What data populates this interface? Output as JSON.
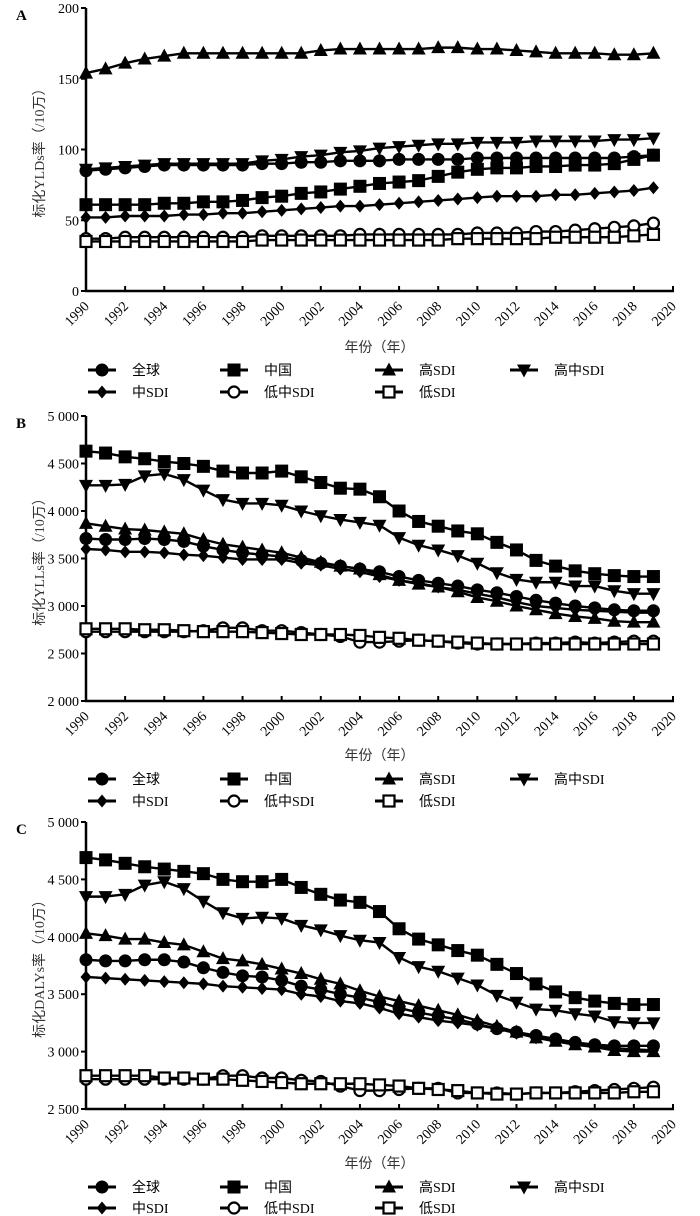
{
  "chart_data": [
    {
      "type": "line",
      "panel_label": "A",
      "title": "",
      "xlabel": "年份（年）",
      "ylabel": "标化YLDs率（/10万）",
      "xlim": [
        1990,
        2020
      ],
      "ylim": [
        0,
        200
      ],
      "x_ticks": [
        "1990",
        "1992",
        "1994",
        "1996",
        "1998",
        "2000",
        "2002",
        "2004",
        "2006",
        "2008",
        "2010",
        "2012",
        "2014",
        "2016",
        "2018",
        "2020"
      ],
      "y_ticks": [
        {
          "value": 0,
          "label": "0"
        },
        {
          "value": 50,
          "label": "50"
        },
        {
          "value": 100,
          "label": "100"
        },
        {
          "value": 150,
          "label": "150"
        },
        {
          "value": 200,
          "label": "200"
        }
      ],
      "grid": false,
      "legend_position": "bottom",
      "x": [
        1990,
        1991,
        1992,
        1993,
        1994,
        1995,
        1996,
        1997,
        1998,
        1999,
        2000,
        2001,
        2002,
        2003,
        2004,
        2005,
        2006,
        2007,
        2008,
        2009,
        2010,
        2011,
        2012,
        2013,
        2014,
        2015,
        2016,
        2017,
        2018,
        2019
      ],
      "series": [
        {
          "name": "全球",
          "marker": "circle-filled",
          "values": [
            85,
            86,
            87,
            88,
            89,
            89,
            89,
            89,
            89,
            90,
            90,
            91,
            91,
            92,
            92,
            92,
            93,
            93,
            93,
            93,
            94,
            94,
            94,
            94,
            94,
            94,
            94,
            94,
            95,
            96
          ]
        },
        {
          "name": "中国",
          "marker": "square-filled",
          "values": [
            61,
            61,
            61,
            61,
            62,
            62,
            63,
            63,
            64,
            66,
            67,
            69,
            70,
            72,
            74,
            76,
            77,
            78,
            81,
            84,
            86,
            87,
            87,
            88,
            88,
            89,
            89,
            90,
            93,
            96
          ]
        },
        {
          "name": "高SDI",
          "marker": "triangle-up-filled",
          "values": [
            154,
            157,
            161,
            164,
            166,
            168,
            168,
            168,
            168,
            168,
            168,
            168,
            170,
            171,
            171,
            171,
            171,
            171,
            172,
            172,
            171,
            171,
            170,
            169,
            168,
            168,
            168,
            167,
            167,
            168
          ]
        },
        {
          "name": "高中SDI",
          "marker": "triangle-down-filled",
          "values": [
            86,
            87,
            88,
            89,
            90,
            90,
            90,
            90,
            90,
            92,
            93,
            95,
            96,
            98,
            99,
            101,
            102,
            103,
            104,
            104,
            105,
            105,
            105,
            106,
            106,
            106,
            106,
            107,
            107,
            108
          ]
        },
        {
          "name": "中SDI",
          "marker": "diamond-filled",
          "values": [
            52,
            52,
            53,
            53,
            53,
            54,
            54,
            55,
            55,
            56,
            57,
            58,
            59,
            60,
            60,
            61,
            62,
            63,
            64,
            65,
            66,
            67,
            67,
            67,
            68,
            68,
            69,
            70,
            71,
            73
          ]
        },
        {
          "name": "低中SDI",
          "marker": "circle-open",
          "values": [
            37,
            37,
            38,
            38,
            38,
            38,
            38,
            38,
            38,
            39,
            39,
            39,
            39,
            39,
            40,
            40,
            40,
            40,
            40,
            40,
            41,
            41,
            41,
            42,
            42,
            43,
            44,
            45,
            46,
            48
          ]
        },
        {
          "name": "低SDI",
          "marker": "square-open",
          "values": [
            35,
            35,
            35,
            35,
            35,
            35,
            35,
            35,
            35,
            36,
            36,
            36,
            36,
            36,
            36,
            36,
            36,
            36,
            36,
            37,
            37,
            37,
            37,
            37,
            38,
            38,
            38,
            38,
            39,
            40
          ]
        }
      ]
    },
    {
      "type": "line",
      "panel_label": "B",
      "title": "",
      "xlabel": "年份（年）",
      "ylabel": "标化YLLs率（/10万）",
      "xlim": [
        1990,
        2020
      ],
      "ylim": [
        2000,
        5000
      ],
      "x_ticks": [
        "1990",
        "1992",
        "1994",
        "1996",
        "1998",
        "2000",
        "2002",
        "2004",
        "2006",
        "2008",
        "2010",
        "2012",
        "2014",
        "2016",
        "2018",
        "2020"
      ],
      "y_ticks": [
        {
          "value": 2000,
          "label": "2 000"
        },
        {
          "value": 2500,
          "label": "2 500"
        },
        {
          "value": 3000,
          "label": "3 000"
        },
        {
          "value": 3500,
          "label": "3 500"
        },
        {
          "value": 4000,
          "label": "4 000"
        },
        {
          "value": 4500,
          "label": "4 500"
        },
        {
          "value": 5000,
          "label": "5 000"
        }
      ],
      "grid": false,
      "legend_position": "bottom",
      "x": [
        1990,
        1991,
        1992,
        1993,
        1994,
        1995,
        1996,
        1997,
        1998,
        1999,
        2000,
        2001,
        2002,
        2003,
        2004,
        2005,
        2006,
        2007,
        2008,
        2009,
        2010,
        2011,
        2012,
        2013,
        2014,
        2015,
        2016,
        2017,
        2018,
        2019
      ],
      "series": [
        {
          "name": "全球",
          "marker": "circle-filled",
          "values": [
            3710,
            3700,
            3700,
            3710,
            3700,
            3680,
            3630,
            3590,
            3560,
            3540,
            3520,
            3480,
            3450,
            3420,
            3390,
            3360,
            3310,
            3270,
            3240,
            3210,
            3170,
            3140,
            3100,
            3060,
            3030,
            3000,
            2980,
            2960,
            2950,
            2950
          ]
        },
        {
          "name": "中国",
          "marker": "square-filled",
          "values": [
            4630,
            4610,
            4570,
            4550,
            4520,
            4500,
            4470,
            4420,
            4400,
            4400,
            4420,
            4360,
            4300,
            4240,
            4230,
            4150,
            4000,
            3890,
            3840,
            3790,
            3760,
            3670,
            3590,
            3480,
            3420,
            3370,
            3340,
            3320,
            3310,
            3310
          ]
        },
        {
          "name": "高SDI",
          "marker": "triangle-up-filled",
          "values": [
            3870,
            3840,
            3810,
            3800,
            3780,
            3760,
            3700,
            3650,
            3620,
            3590,
            3560,
            3510,
            3460,
            3420,
            3390,
            3330,
            3270,
            3230,
            3200,
            3150,
            3090,
            3050,
            3000,
            2960,
            2920,
            2890,
            2870,
            2840,
            2830,
            2830
          ]
        },
        {
          "name": "高中SDI",
          "marker": "triangle-down-filled",
          "values": [
            4270,
            4270,
            4280,
            4370,
            4390,
            4330,
            4220,
            4120,
            4080,
            4080,
            4060,
            4000,
            3950,
            3910,
            3880,
            3850,
            3720,
            3640,
            3590,
            3530,
            3450,
            3350,
            3280,
            3250,
            3250,
            3210,
            3210,
            3160,
            3130,
            3130
          ]
        },
        {
          "name": "中SDI",
          "marker": "diamond-filled",
          "values": [
            3600,
            3590,
            3570,
            3570,
            3560,
            3540,
            3530,
            3510,
            3490,
            3490,
            3490,
            3450,
            3430,
            3390,
            3360,
            3310,
            3270,
            3240,
            3200,
            3170,
            3130,
            3090,
            3040,
            3000,
            2980,
            2960,
            2950,
            2940,
            2930,
            2930
          ]
        },
        {
          "name": "低中SDI",
          "marker": "circle-open",
          "values": [
            2730,
            2730,
            2730,
            2730,
            2730,
            2730,
            2740,
            2770,
            2770,
            2740,
            2740,
            2720,
            2700,
            2680,
            2620,
            2620,
            2630,
            2640,
            2630,
            2610,
            2600,
            2600,
            2600,
            2610,
            2610,
            2620,
            2610,
            2620,
            2630,
            2630
          ]
        },
        {
          "name": "低SDI",
          "marker": "square-open",
          "values": [
            2760,
            2760,
            2760,
            2750,
            2750,
            2740,
            2730,
            2730,
            2730,
            2720,
            2710,
            2700,
            2700,
            2700,
            2690,
            2670,
            2660,
            2640,
            2630,
            2620,
            2610,
            2600,
            2600,
            2600,
            2600,
            2600,
            2600,
            2600,
            2600,
            2600
          ]
        }
      ]
    },
    {
      "type": "line",
      "panel_label": "C",
      "title": "",
      "xlabel": "年份（年）",
      "ylabel": "标化DALYs率（/10万）",
      "xlim": [
        1990,
        2020
      ],
      "ylim": [
        2500,
        5000
      ],
      "x_ticks": [
        "1990",
        "1992",
        "1994",
        "1996",
        "1998",
        "2000",
        "2002",
        "2004",
        "2006",
        "2008",
        "2010",
        "2012",
        "2014",
        "2016",
        "2018",
        "2020"
      ],
      "y_ticks": [
        {
          "value": 2500,
          "label": "2 500"
        },
        {
          "value": 3000,
          "label": "3 000"
        },
        {
          "value": 3500,
          "label": "3 500"
        },
        {
          "value": 4000,
          "label": "4 000"
        },
        {
          "value": 4500,
          "label": "4 500"
        },
        {
          "value": 5000,
          "label": "5 000"
        }
      ],
      "grid": false,
      "legend_position": "bottom",
      "x": [
        1990,
        1991,
        1992,
        1993,
        1994,
        1995,
        1996,
        1997,
        1998,
        1999,
        2000,
        2001,
        2002,
        2003,
        2004,
        2005,
        2006,
        2007,
        2008,
        2009,
        2010,
        2011,
        2012,
        2013,
        2014,
        2015,
        2016,
        2017,
        2018,
        2019
      ],
      "series": [
        {
          "name": "全球",
          "marker": "circle-filled",
          "values": [
            3800,
            3790,
            3790,
            3800,
            3800,
            3780,
            3730,
            3690,
            3660,
            3650,
            3620,
            3570,
            3540,
            3500,
            3470,
            3430,
            3380,
            3340,
            3310,
            3280,
            3240,
            3200,
            3170,
            3140,
            3110,
            3080,
            3060,
            3050,
            3050,
            3050
          ]
        },
        {
          "name": "中国",
          "marker": "square-filled",
          "values": [
            4690,
            4670,
            4640,
            4610,
            4590,
            4570,
            4550,
            4500,
            4480,
            4480,
            4500,
            4430,
            4370,
            4320,
            4300,
            4220,
            4070,
            3980,
            3930,
            3880,
            3840,
            3760,
            3680,
            3590,
            3520,
            3470,
            3440,
            3420,
            3410,
            3410
          ]
        },
        {
          "name": "高SDI",
          "marker": "triangle-up-filled",
          "values": [
            4030,
            4010,
            3980,
            3980,
            3950,
            3930,
            3870,
            3810,
            3790,
            3760,
            3720,
            3680,
            3630,
            3590,
            3530,
            3480,
            3440,
            3400,
            3360,
            3320,
            3270,
            3220,
            3170,
            3120,
            3090,
            3060,
            3040,
            3010,
            3000,
            3000
          ]
        },
        {
          "name": "高中SDI",
          "marker": "triangle-down-filled",
          "values": [
            4350,
            4350,
            4370,
            4450,
            4480,
            4420,
            4310,
            4210,
            4160,
            4170,
            4160,
            4100,
            4060,
            4010,
            3970,
            3950,
            3820,
            3740,
            3700,
            3640,
            3580,
            3490,
            3430,
            3370,
            3360,
            3330,
            3310,
            3260,
            3250,
            3250
          ]
        },
        {
          "name": "中SDI",
          "marker": "diamond-filled",
          "values": [
            3650,
            3640,
            3630,
            3620,
            3610,
            3600,
            3590,
            3570,
            3560,
            3550,
            3540,
            3500,
            3480,
            3440,
            3420,
            3380,
            3330,
            3300,
            3270,
            3250,
            3230,
            3200,
            3160,
            3120,
            3100,
            3070,
            3050,
            3030,
            3020,
            3010
          ]
        },
        {
          "name": "低中SDI",
          "marker": "circle-open",
          "values": [
            2760,
            2760,
            2760,
            2760,
            2760,
            2760,
            2760,
            2790,
            2790,
            2770,
            2770,
            2750,
            2740,
            2700,
            2660,
            2660,
            2670,
            2680,
            2680,
            2640,
            2640,
            2640,
            2630,
            2640,
            2640,
            2650,
            2660,
            2670,
            2680,
            2690
          ]
        },
        {
          "name": "低SDI",
          "marker": "square-open",
          "values": [
            2790,
            2790,
            2790,
            2790,
            2770,
            2770,
            2760,
            2760,
            2750,
            2740,
            2730,
            2720,
            2720,
            2720,
            2720,
            2710,
            2700,
            2680,
            2670,
            2660,
            2640,
            2630,
            2630,
            2640,
            2640,
            2640,
            2640,
            2640,
            2650,
            2650
          ]
        }
      ]
    }
  ],
  "legend": {
    "items": [
      {
        "label": "全球",
        "marker": "circle-filled"
      },
      {
        "label": "中国",
        "marker": "square-filled"
      },
      {
        "label": "高SDI",
        "marker": "triangle-up-filled"
      },
      {
        "label": "高中SDI",
        "marker": "triangle-down-filled"
      },
      {
        "label": "中SDI",
        "marker": "diamond-filled"
      },
      {
        "label": "低中SDI",
        "marker": "circle-open"
      },
      {
        "label": "低SDI",
        "marker": "square-open"
      }
    ]
  },
  "colors": {
    "ink": "#000000",
    "background": "#ffffff"
  }
}
